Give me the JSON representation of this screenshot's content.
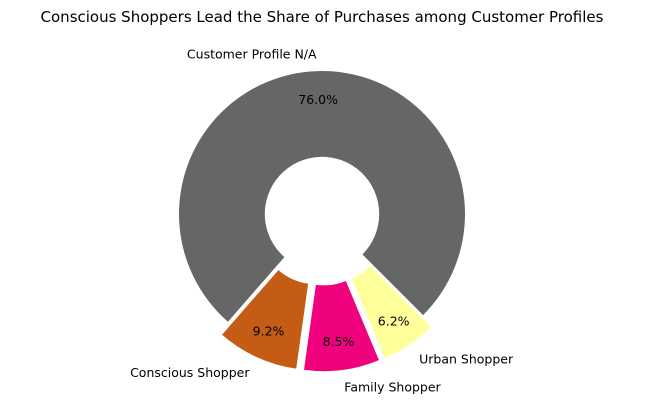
{
  "chart_data": {
    "type": "pie",
    "style": "donut",
    "title": "Conscious Shoppers Lead the Share of Purchases among Customer Profiles",
    "start_angle_deg": -45,
    "direction": "counterclockwise",
    "hole_fraction": 0.4,
    "slices": [
      {
        "label": "Customer Profile N/A",
        "value": 76.0,
        "pct_label": "76.0%",
        "color": "#666666",
        "exploded": false
      },
      {
        "label": "Conscious Shopper",
        "value": 9.2,
        "pct_label": "9.2%",
        "color": "#c45c16",
        "exploded": true
      },
      {
        "label": "Family Shopper",
        "value": 8.5,
        "pct_label": "8.5%",
        "color": "#f0027f",
        "exploded": true
      },
      {
        "label": "Urban Shopper",
        "value": 6.2,
        "pct_label": "6.2%",
        "color": "#ffff99",
        "exploded": true
      }
    ]
  }
}
